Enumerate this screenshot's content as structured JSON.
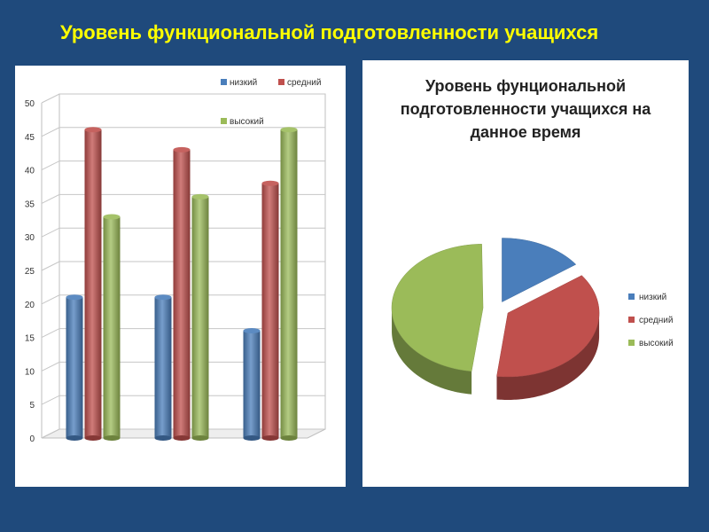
{
  "slide": {
    "title": "Уровень функциональной подготовленности учащихся"
  },
  "colors": {
    "low": "#4a7ebb",
    "mid": "#c0504d",
    "high": "#9bbb59",
    "background": "#1f4a7c",
    "title": "#ffff00"
  },
  "chart_data": [
    {
      "type": "bar",
      "title": "",
      "categories": [
        "",
        "",
        ""
      ],
      "series": [
        {
          "name": "низкий",
          "values": [
            21,
            21,
            16
          ]
        },
        {
          "name": "средний",
          "values": [
            46,
            43,
            38
          ]
        },
        {
          "name": "высокий",
          "values": [
            33,
            36,
            46
          ]
        }
      ],
      "ylim": [
        0,
        50
      ],
      "yticks": [
        "0",
        "5",
        "10",
        "15",
        "20",
        "25",
        "30",
        "35",
        "40",
        "45",
        "50"
      ],
      "grid": true,
      "legend": "top-right"
    },
    {
      "type": "pie",
      "title": "Уровень фунциональной подготовленности учащихся на данное время",
      "labels": [
        "низкий",
        "средний",
        "высокий"
      ],
      "values": [
        15,
        37,
        48
      ],
      "legend": "right"
    }
  ]
}
